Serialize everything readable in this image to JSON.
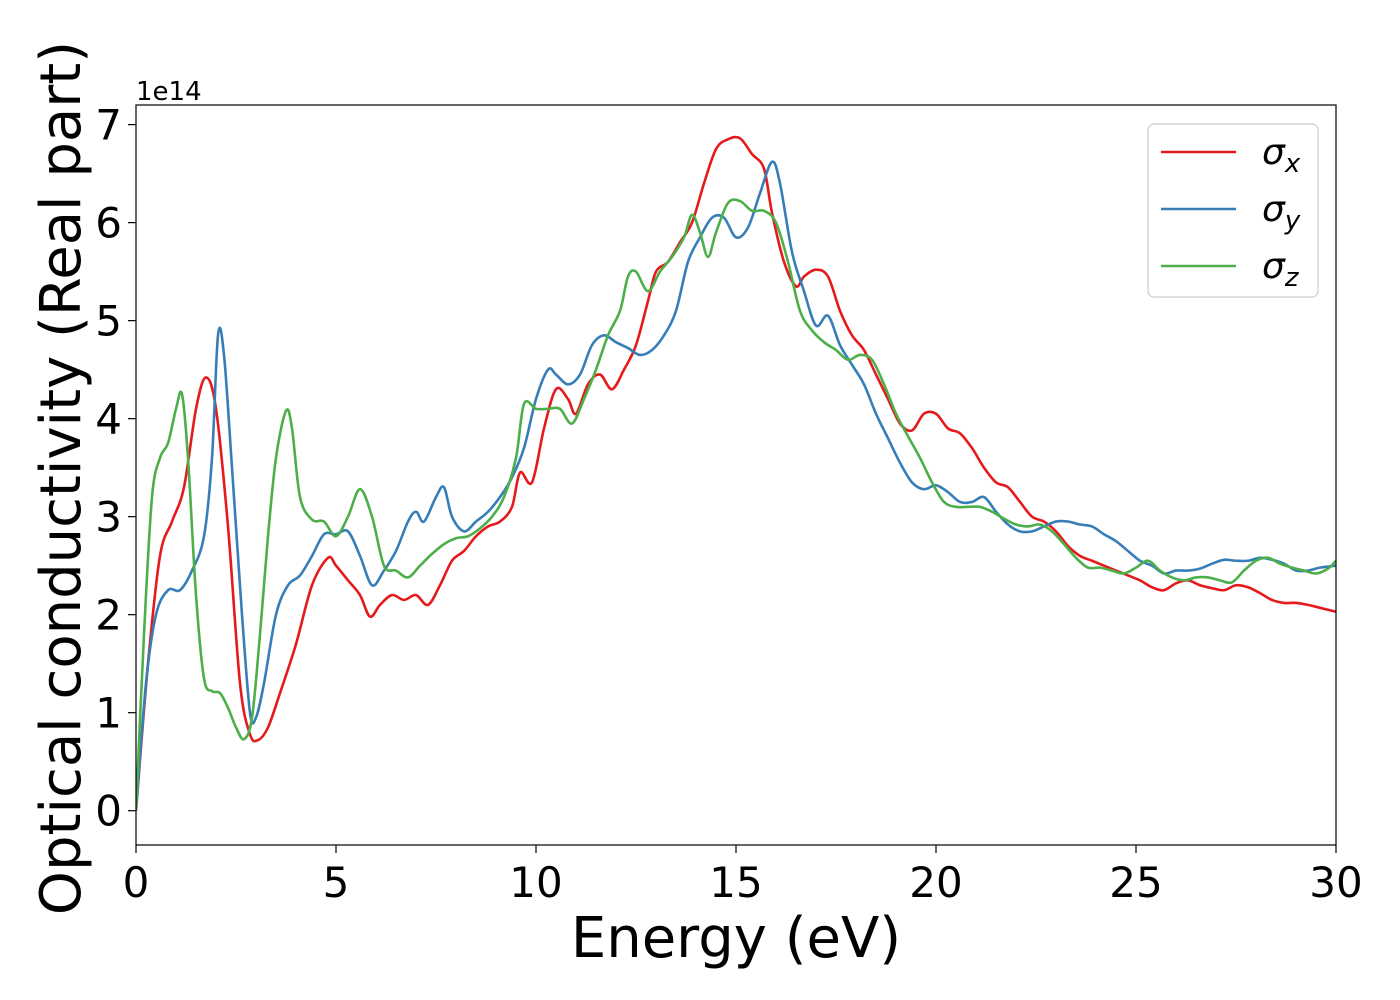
{
  "chart_data": {
    "type": "line",
    "title": "",
    "xlabel": "Energy (eV)",
    "ylabel": "Optical conductivity (Real part)",
    "y_offset_label": "1e14",
    "xlim": [
      0,
      30
    ],
    "ylim": [
      -0.35,
      7.2
    ],
    "x_ticks": [
      0,
      5,
      10,
      15,
      20,
      25,
      30
    ],
    "y_ticks": [
      0,
      1,
      2,
      3,
      4,
      5,
      6,
      7
    ],
    "grid": false,
    "legend_position": "top-right",
    "series": [
      {
        "name": "σx",
        "sym": "σ",
        "sub": "x",
        "color": "#e41a1c",
        "points": [
          [
            0,
            0
          ],
          [
            0.3,
            1.5
          ],
          [
            0.6,
            2.6
          ],
          [
            0.9,
            2.95
          ],
          [
            1.2,
            3.3
          ],
          [
            1.5,
            4.1
          ],
          [
            1.75,
            4.42
          ],
          [
            2.0,
            4.1
          ],
          [
            2.3,
            2.9
          ],
          [
            2.6,
            1.3
          ],
          [
            2.85,
            0.78
          ],
          [
            3.05,
            0.72
          ],
          [
            3.3,
            0.85
          ],
          [
            3.6,
            1.2
          ],
          [
            4.0,
            1.7
          ],
          [
            4.4,
            2.3
          ],
          [
            4.8,
            2.58
          ],
          [
            5.0,
            2.5
          ],
          [
            5.3,
            2.35
          ],
          [
            5.6,
            2.2
          ],
          [
            5.85,
            1.98
          ],
          [
            6.1,
            2.1
          ],
          [
            6.4,
            2.2
          ],
          [
            6.7,
            2.15
          ],
          [
            7.0,
            2.2
          ],
          [
            7.3,
            2.1
          ],
          [
            7.6,
            2.3
          ],
          [
            7.9,
            2.55
          ],
          [
            8.2,
            2.65
          ],
          [
            8.5,
            2.8
          ],
          [
            8.8,
            2.9
          ],
          [
            9.1,
            2.95
          ],
          [
            9.4,
            3.1
          ],
          [
            9.6,
            3.45
          ],
          [
            9.9,
            3.35
          ],
          [
            10.2,
            3.9
          ],
          [
            10.5,
            4.3
          ],
          [
            10.8,
            4.2
          ],
          [
            11.0,
            4.05
          ],
          [
            11.3,
            4.35
          ],
          [
            11.6,
            4.45
          ],
          [
            11.9,
            4.3
          ],
          [
            12.2,
            4.5
          ],
          [
            12.5,
            4.75
          ],
          [
            12.8,
            5.2
          ],
          [
            13.0,
            5.5
          ],
          [
            13.3,
            5.6
          ],
          [
            13.6,
            5.8
          ],
          [
            13.9,
            6.0
          ],
          [
            14.2,
            6.4
          ],
          [
            14.5,
            6.75
          ],
          [
            14.8,
            6.85
          ],
          [
            15.1,
            6.86
          ],
          [
            15.4,
            6.7
          ],
          [
            15.7,
            6.55
          ],
          [
            15.9,
            6.1
          ],
          [
            16.2,
            5.6
          ],
          [
            16.5,
            5.35
          ],
          [
            16.7,
            5.45
          ],
          [
            17.0,
            5.52
          ],
          [
            17.3,
            5.45
          ],
          [
            17.6,
            5.1
          ],
          [
            17.9,
            4.85
          ],
          [
            18.2,
            4.7
          ],
          [
            18.5,
            4.45
          ],
          [
            18.8,
            4.2
          ],
          [
            19.1,
            3.95
          ],
          [
            19.4,
            3.88
          ],
          [
            19.7,
            4.05
          ],
          [
            20.0,
            4.05
          ],
          [
            20.3,
            3.9
          ],
          [
            20.6,
            3.85
          ],
          [
            20.9,
            3.7
          ],
          [
            21.2,
            3.5
          ],
          [
            21.5,
            3.35
          ],
          [
            21.8,
            3.3
          ],
          [
            22.1,
            3.15
          ],
          [
            22.4,
            3.0
          ],
          [
            22.7,
            2.95
          ],
          [
            23.0,
            2.85
          ],
          [
            23.3,
            2.7
          ],
          [
            23.6,
            2.6
          ],
          [
            23.9,
            2.55
          ],
          [
            24.2,
            2.5
          ],
          [
            24.5,
            2.45
          ],
          [
            24.8,
            2.4
          ],
          [
            25.1,
            2.35
          ],
          [
            25.4,
            2.28
          ],
          [
            25.7,
            2.25
          ],
          [
            26.0,
            2.32
          ],
          [
            26.3,
            2.35
          ],
          [
            26.6,
            2.3
          ],
          [
            26.9,
            2.27
          ],
          [
            27.2,
            2.25
          ],
          [
            27.5,
            2.3
          ],
          [
            27.8,
            2.28
          ],
          [
            28.1,
            2.22
          ],
          [
            28.4,
            2.15
          ],
          [
            28.7,
            2.12
          ],
          [
            29.0,
            2.12
          ],
          [
            29.3,
            2.1
          ],
          [
            29.6,
            2.07
          ],
          [
            30.0,
            2.03
          ]
        ]
      },
      {
        "name": "σy",
        "sym": "σ",
        "sub": "y",
        "color": "#377eb8",
        "points": [
          [
            0,
            0
          ],
          [
            0.25,
            1.3
          ],
          [
            0.5,
            2.0
          ],
          [
            0.8,
            2.25
          ],
          [
            1.1,
            2.25
          ],
          [
            1.4,
            2.45
          ],
          [
            1.7,
            2.8
          ],
          [
            1.9,
            3.6
          ],
          [
            2.05,
            4.85
          ],
          [
            2.2,
            4.65
          ],
          [
            2.4,
            3.5
          ],
          [
            2.65,
            2.0
          ],
          [
            2.85,
            1.0
          ],
          [
            3.0,
            0.95
          ],
          [
            3.2,
            1.3
          ],
          [
            3.5,
            2.0
          ],
          [
            3.8,
            2.3
          ],
          [
            4.1,
            2.4
          ],
          [
            4.4,
            2.6
          ],
          [
            4.7,
            2.82
          ],
          [
            5.0,
            2.82
          ],
          [
            5.3,
            2.85
          ],
          [
            5.6,
            2.6
          ],
          [
            5.9,
            2.3
          ],
          [
            6.2,
            2.45
          ],
          [
            6.5,
            2.65
          ],
          [
            6.8,
            2.95
          ],
          [
            7.0,
            3.05
          ],
          [
            7.2,
            2.95
          ],
          [
            7.5,
            3.2
          ],
          [
            7.7,
            3.3
          ],
          [
            7.9,
            3.0
          ],
          [
            8.2,
            2.85
          ],
          [
            8.5,
            2.95
          ],
          [
            8.8,
            3.05
          ],
          [
            9.1,
            3.2
          ],
          [
            9.4,
            3.4
          ],
          [
            9.7,
            3.7
          ],
          [
            10.0,
            4.2
          ],
          [
            10.3,
            4.5
          ],
          [
            10.5,
            4.45
          ],
          [
            10.8,
            4.35
          ],
          [
            11.1,
            4.45
          ],
          [
            11.4,
            4.75
          ],
          [
            11.7,
            4.85
          ],
          [
            12.0,
            4.78
          ],
          [
            12.3,
            4.72
          ],
          [
            12.6,
            4.65
          ],
          [
            12.9,
            4.7
          ],
          [
            13.2,
            4.85
          ],
          [
            13.5,
            5.1
          ],
          [
            13.8,
            5.6
          ],
          [
            14.1,
            5.85
          ],
          [
            14.4,
            6.05
          ],
          [
            14.7,
            6.05
          ],
          [
            15.0,
            5.85
          ],
          [
            15.3,
            5.95
          ],
          [
            15.6,
            6.3
          ],
          [
            15.9,
            6.62
          ],
          [
            16.1,
            6.4
          ],
          [
            16.4,
            5.7
          ],
          [
            16.7,
            5.3
          ],
          [
            17.0,
            4.95
          ],
          [
            17.3,
            5.05
          ],
          [
            17.6,
            4.75
          ],
          [
            17.9,
            4.55
          ],
          [
            18.2,
            4.35
          ],
          [
            18.5,
            4.05
          ],
          [
            18.8,
            3.8
          ],
          [
            19.1,
            3.55
          ],
          [
            19.4,
            3.35
          ],
          [
            19.7,
            3.28
          ],
          [
            20.0,
            3.32
          ],
          [
            20.3,
            3.25
          ],
          [
            20.6,
            3.15
          ],
          [
            20.9,
            3.15
          ],
          [
            21.2,
            3.2
          ],
          [
            21.5,
            3.05
          ],
          [
            21.8,
            2.92
          ],
          [
            22.1,
            2.85
          ],
          [
            22.4,
            2.85
          ],
          [
            22.7,
            2.9
          ],
          [
            23.0,
            2.95
          ],
          [
            23.3,
            2.95
          ],
          [
            23.6,
            2.92
          ],
          [
            23.9,
            2.9
          ],
          [
            24.2,
            2.82
          ],
          [
            24.5,
            2.75
          ],
          [
            24.8,
            2.65
          ],
          [
            25.1,
            2.55
          ],
          [
            25.4,
            2.5
          ],
          [
            25.7,
            2.42
          ],
          [
            26.0,
            2.45
          ],
          [
            26.3,
            2.45
          ],
          [
            26.6,
            2.47
          ],
          [
            26.9,
            2.52
          ],
          [
            27.2,
            2.56
          ],
          [
            27.5,
            2.55
          ],
          [
            27.8,
            2.55
          ],
          [
            28.1,
            2.58
          ],
          [
            28.4,
            2.56
          ],
          [
            28.7,
            2.52
          ],
          [
            29.0,
            2.45
          ],
          [
            29.3,
            2.45
          ],
          [
            29.6,
            2.48
          ],
          [
            30.0,
            2.5
          ]
        ]
      },
      {
        "name": "σz",
        "sym": "σ",
        "sub": "z",
        "color": "#4daf4a",
        "points": [
          [
            0,
            0
          ],
          [
            0.2,
            1.8
          ],
          [
            0.4,
            3.2
          ],
          [
            0.6,
            3.6
          ],
          [
            0.8,
            3.75
          ],
          [
            1.0,
            4.1
          ],
          [
            1.15,
            4.25
          ],
          [
            1.3,
            3.6
          ],
          [
            1.5,
            2.2
          ],
          [
            1.7,
            1.35
          ],
          [
            1.9,
            1.22
          ],
          [
            2.1,
            1.2
          ],
          [
            2.3,
            1.05
          ],
          [
            2.5,
            0.85
          ],
          [
            2.7,
            0.73
          ],
          [
            2.9,
            0.95
          ],
          [
            3.1,
            1.8
          ],
          [
            3.3,
            2.8
          ],
          [
            3.5,
            3.6
          ],
          [
            3.75,
            4.08
          ],
          [
            3.9,
            3.9
          ],
          [
            4.1,
            3.2
          ],
          [
            4.4,
            2.97
          ],
          [
            4.7,
            2.95
          ],
          [
            5.0,
            2.8
          ],
          [
            5.3,
            3.0
          ],
          [
            5.6,
            3.28
          ],
          [
            5.9,
            3.0
          ],
          [
            6.2,
            2.5
          ],
          [
            6.5,
            2.45
          ],
          [
            6.8,
            2.38
          ],
          [
            7.1,
            2.5
          ],
          [
            7.4,
            2.62
          ],
          [
            7.7,
            2.72
          ],
          [
            8.0,
            2.78
          ],
          [
            8.3,
            2.8
          ],
          [
            8.6,
            2.88
          ],
          [
            8.9,
            3.0
          ],
          [
            9.2,
            3.2
          ],
          [
            9.5,
            3.6
          ],
          [
            9.7,
            4.15
          ],
          [
            10.0,
            4.1
          ],
          [
            10.3,
            4.1
          ],
          [
            10.6,
            4.1
          ],
          [
            10.9,
            3.95
          ],
          [
            11.2,
            4.2
          ],
          [
            11.5,
            4.5
          ],
          [
            11.8,
            4.85
          ],
          [
            12.1,
            5.1
          ],
          [
            12.3,
            5.45
          ],
          [
            12.5,
            5.5
          ],
          [
            12.8,
            5.3
          ],
          [
            13.1,
            5.5
          ],
          [
            13.4,
            5.65
          ],
          [
            13.7,
            5.85
          ],
          [
            13.9,
            6.08
          ],
          [
            14.1,
            5.9
          ],
          [
            14.3,
            5.65
          ],
          [
            14.5,
            5.9
          ],
          [
            14.8,
            6.2
          ],
          [
            15.1,
            6.22
          ],
          [
            15.4,
            6.12
          ],
          [
            15.7,
            6.12
          ],
          [
            16.0,
            6.0
          ],
          [
            16.3,
            5.6
          ],
          [
            16.6,
            5.1
          ],
          [
            16.9,
            4.9
          ],
          [
            17.2,
            4.78
          ],
          [
            17.5,
            4.7
          ],
          [
            17.8,
            4.6
          ],
          [
            18.1,
            4.65
          ],
          [
            18.4,
            4.6
          ],
          [
            18.7,
            4.35
          ],
          [
            19.0,
            4.05
          ],
          [
            19.3,
            3.82
          ],
          [
            19.6,
            3.6
          ],
          [
            19.9,
            3.35
          ],
          [
            20.2,
            3.15
          ],
          [
            20.5,
            3.1
          ],
          [
            20.8,
            3.1
          ],
          [
            21.1,
            3.1
          ],
          [
            21.4,
            3.05
          ],
          [
            21.7,
            2.98
          ],
          [
            22.0,
            2.92
          ],
          [
            22.3,
            2.9
          ],
          [
            22.6,
            2.92
          ],
          [
            22.9,
            2.85
          ],
          [
            23.2,
            2.72
          ],
          [
            23.5,
            2.58
          ],
          [
            23.8,
            2.48
          ],
          [
            24.1,
            2.48
          ],
          [
            24.4,
            2.45
          ],
          [
            24.7,
            2.42
          ],
          [
            25.0,
            2.48
          ],
          [
            25.3,
            2.55
          ],
          [
            25.6,
            2.45
          ],
          [
            25.9,
            2.38
          ],
          [
            26.2,
            2.35
          ],
          [
            26.5,
            2.38
          ],
          [
            26.8,
            2.38
          ],
          [
            27.1,
            2.35
          ],
          [
            27.4,
            2.33
          ],
          [
            27.7,
            2.45
          ],
          [
            28.0,
            2.55
          ],
          [
            28.3,
            2.58
          ],
          [
            28.6,
            2.52
          ],
          [
            28.9,
            2.48
          ],
          [
            29.2,
            2.45
          ],
          [
            29.5,
            2.42
          ],
          [
            29.8,
            2.47
          ],
          [
            30.0,
            2.55
          ]
        ]
      }
    ]
  }
}
